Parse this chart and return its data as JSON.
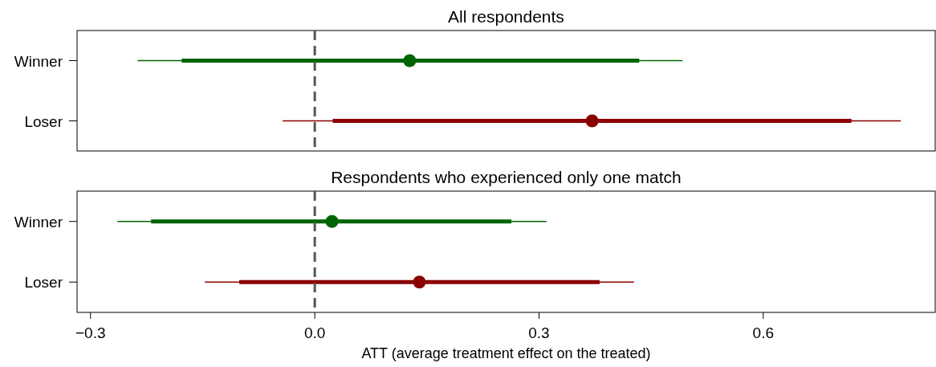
{
  "chart_data": [
    {
      "type": "scatter",
      "title": "All respondents",
      "orientation": "horizontal",
      "categories": [
        "Winner",
        "Loser"
      ],
      "xlim": [
        -0.318,
        0.83
      ],
      "tick_labels": "y",
      "grid": false,
      "series": [
        {
          "type": "bar",
          "base": [
            -0.178,
            0.024
          ],
          "values": [
            0.612,
            0.694
          ],
          "colors": [
            "#006400",
            "#8b0000"
          ]
        },
        {
          "values": [
            0.127,
            0.371
          ],
          "errors": [
            [
              -0.237,
              0.492
            ],
            [
              -0.043,
              0.784
            ]
          ],
          "colors": [
            "#006400",
            "#8b0000"
          ],
          "marker": "circle"
        }
      ],
      "ref_lines": [
        {
          "axis": "x",
          "value": 0,
          "color": "#555555",
          "line_style": "dashed"
        }
      ]
    },
    {
      "type": "scatter",
      "title": "Respondents who experienced only one match",
      "orientation": "horizontal",
      "categories": [
        "Winner",
        "Loser"
      ],
      "xlim": [
        -0.318,
        0.83
      ],
      "xticks": [
        {
          "value": -0.3,
          "label": "−0.3"
        },
        {
          "value": 0,
          "label": "0.0"
        },
        0.3,
        0.6
      ],
      "xlabel": "ATT (average treatment effect on the treated)",
      "grid": false,
      "series": [
        {
          "type": "bar",
          "base": [
            -0.219,
            -0.101
          ],
          "values": [
            0.482,
            0.482
          ],
          "colors": [
            "#006400",
            "#8b0000"
          ]
        },
        {
          "values": [
            0.023,
            0.14
          ],
          "errors": [
            [
              -0.264,
              0.31
            ],
            [
              -0.147,
              0.427
            ]
          ],
          "colors": [
            "#006400",
            "#8b0000"
          ],
          "marker": "circle"
        }
      ],
      "ref_lines": [
        {
          "axis": "x",
          "value": 0,
          "color": "#555555",
          "line_style": "dashed"
        }
      ]
    }
  ]
}
